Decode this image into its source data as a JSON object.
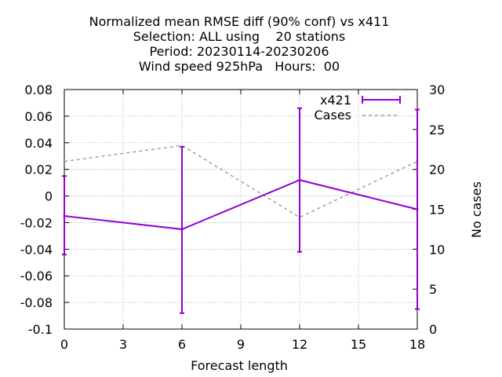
{
  "chart_data": {
    "type": "line",
    "title_lines": [
      "Normalized mean RMSE diff (90% conf) vs x411",
      "Selection: ALL using    20 stations",
      "Period: 20230114-20230206",
      "Wind speed 925hPa   Hours:  00"
    ],
    "xlabel": "Forecast length",
    "ylabel": "",
    "y2label": "No cases",
    "xlim": [
      0,
      18
    ],
    "ylim": [
      -0.1,
      0.08
    ],
    "y2lim": [
      0,
      30
    ],
    "x_ticks": [
      0,
      3,
      6,
      9,
      12,
      15,
      18
    ],
    "x_tick_labels": [
      "0",
      "3",
      "6",
      "9",
      "12",
      "15",
      "18"
    ],
    "y_ticks": [
      -0.1,
      -0.08,
      -0.06,
      -0.04,
      -0.02,
      0,
      0.02,
      0.04,
      0.06,
      0.08
    ],
    "y_tick_labels": [
      "-0.1",
      "-0.08",
      "-0.06",
      "-0.04",
      "-0.02",
      "0",
      "0.02",
      "0.04",
      "0.06",
      "0.08"
    ],
    "y2_ticks": [
      0,
      5,
      10,
      15,
      20,
      25,
      30
    ],
    "y2_tick_labels": [
      "0",
      "5",
      "10",
      "15",
      "20",
      "25",
      "30"
    ],
    "grid": true,
    "legend_position": "top-right",
    "series": [
      {
        "name": "x421",
        "axis": "left",
        "style": "errorbars",
        "color": "#9400d3",
        "x": [
          0,
          6,
          12,
          18
        ],
        "y": [
          -0.015,
          -0.025,
          0.012,
          -0.01
        ],
        "y_low": [
          -0.044,
          -0.088,
          -0.042,
          -0.085
        ],
        "y_high": [
          0.015,
          0.037,
          0.066,
          0.065
        ]
      },
      {
        "name": "Cases",
        "axis": "right",
        "style": "dashed",
        "color": "#a0a0a0",
        "x": [
          0,
          6,
          12,
          18
        ],
        "y": [
          21,
          23,
          14,
          21
        ]
      }
    ]
  }
}
